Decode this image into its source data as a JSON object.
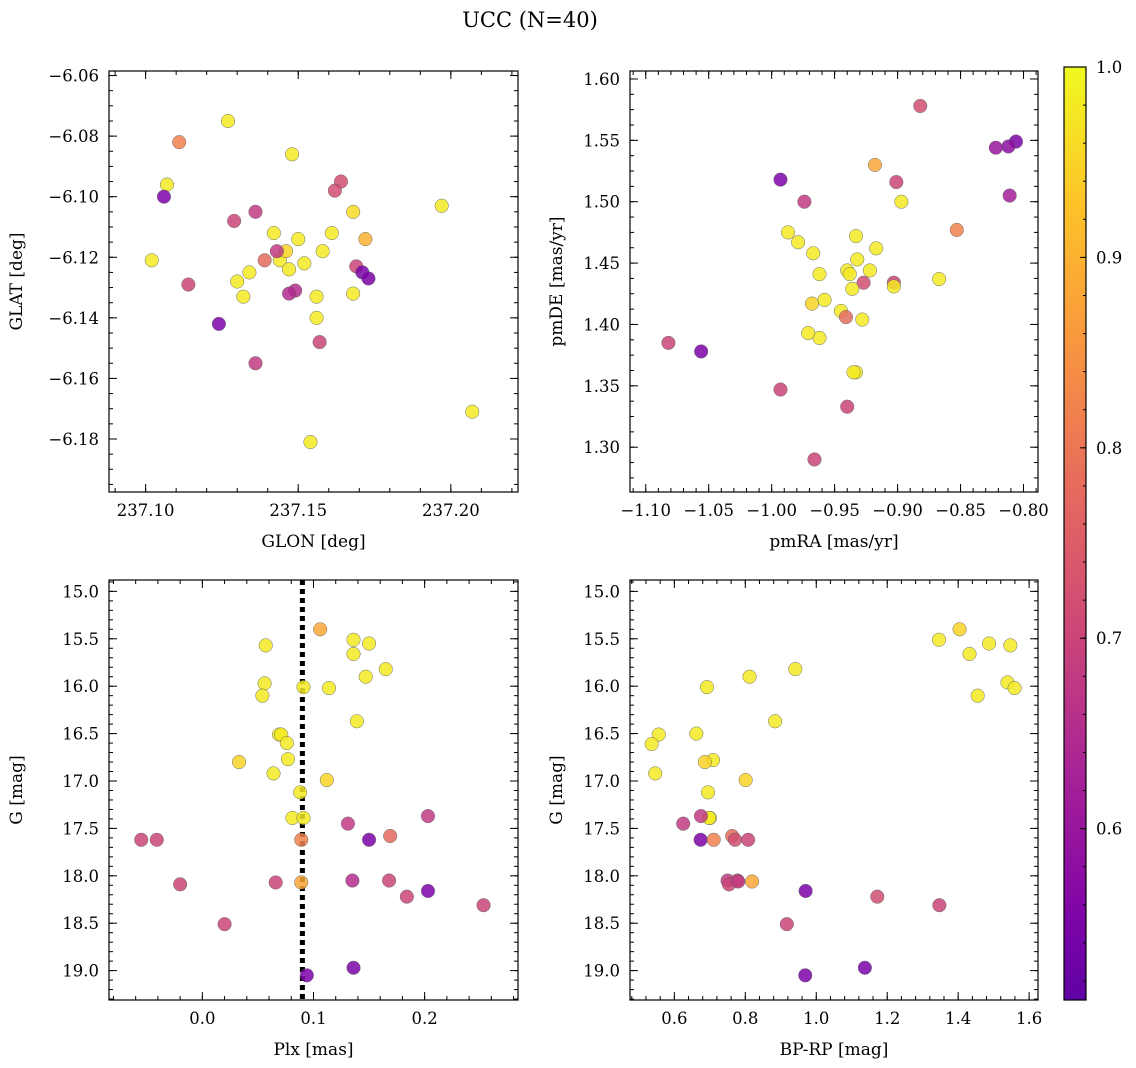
{
  "figure": {
    "title": "UCC (N=40)"
  },
  "colorbar": {
    "cmap": "plasma",
    "vmin": 0.51,
    "vmax": 1.0,
    "ticks": [
      0.6,
      0.7,
      0.8,
      0.9,
      1.0
    ],
    "tick_labels": [
      "0.6",
      "0.7",
      "0.8",
      "0.9",
      "1.0"
    ]
  },
  "chart_data": [
    {
      "type": "scatter",
      "id": "spatial",
      "xlabel": "GLON [deg]",
      "ylabel": "GLAT [deg]",
      "xlim": [
        237.088,
        237.222
      ],
      "ylim": [
        -6.1975,
        -6.0585
      ],
      "invert_y": false,
      "xticks": [
        237.1,
        237.15,
        237.2
      ],
      "xtick_labels": [
        "237.10",
        "237.15",
        "237.20"
      ],
      "yticks": [
        -6.18,
        -6.16,
        -6.14,
        -6.12,
        -6.1,
        -6.08,
        -6.06
      ],
      "ytick_labels": [
        "−6.18",
        "−6.16",
        "−6.14",
        "−6.12",
        "−6.10",
        "−6.08",
        "−6.06"
      ],
      "x": [
        237.127,
        237.111,
        237.107,
        237.106,
        237.148,
        237.164,
        237.162,
        237.197,
        237.136,
        237.129,
        237.168,
        237.142,
        237.15,
        237.161,
        237.102,
        237.144,
        237.146,
        237.158,
        237.172,
        237.139,
        237.152,
        237.169,
        237.171,
        237.173,
        237.134,
        237.13,
        237.114,
        237.149,
        237.147,
        237.168,
        237.132,
        237.156,
        237.124,
        237.156,
        237.157,
        237.136,
        237.154,
        237.207,
        237.143,
        237.147
      ],
      "y": [
        -6.075,
        -6.082,
        -6.096,
        -6.1,
        -6.086,
        -6.095,
        -6.098,
        -6.103,
        -6.105,
        -6.108,
        -6.105,
        -6.112,
        -6.114,
        -6.112,
        -6.121,
        -6.121,
        -6.118,
        -6.118,
        -6.114,
        -6.121,
        -6.122,
        -6.123,
        -6.125,
        -6.127,
        -6.125,
        -6.128,
        -6.129,
        -6.131,
        -6.132,
        -6.132,
        -6.133,
        -6.133,
        -6.142,
        -6.14,
        -6.148,
        -6.155,
        -6.181,
        -6.171,
        -6.118,
        -6.124
      ],
      "c": [
        0.98,
        0.82,
        0.98,
        0.55,
        0.98,
        0.72,
        0.72,
        0.98,
        0.68,
        0.7,
        0.96,
        0.98,
        0.98,
        0.98,
        0.98,
        0.98,
        0.95,
        0.98,
        0.9,
        0.78,
        0.98,
        0.7,
        0.55,
        0.55,
        0.98,
        0.98,
        0.7,
        0.65,
        0.65,
        0.98,
        0.98,
        0.98,
        0.55,
        0.98,
        0.7,
        0.68,
        0.98,
        0.98,
        0.68,
        0.98
      ]
    },
    {
      "type": "scatter",
      "id": "proper-motion",
      "xlabel": "pmRA [mas/yr]",
      "ylabel": "pmDE [mas/yr]",
      "xlim": [
        -1.1125,
        -0.7885
      ],
      "ylim": [
        1.2635,
        1.6065
      ],
      "invert_y": false,
      "xticks": [
        -1.1,
        -1.05,
        -1.0,
        -0.95,
        -0.9,
        -0.85,
        -0.8
      ],
      "xtick_labels": [
        "−1.10",
        "−1.05",
        "−1.00",
        "−0.95",
        "−0.90",
        "−0.85",
        "−0.80"
      ],
      "yticks": [
        1.3,
        1.35,
        1.4,
        1.45,
        1.5,
        1.55,
        1.6
      ],
      "ytick_labels": [
        "1.30",
        "1.35",
        "1.40",
        "1.45",
        "1.50",
        "1.55",
        "1.60"
      ],
      "x": [
        -0.882,
        -0.806,
        -0.812,
        -0.822,
        -0.918,
        -0.993,
        -0.901,
        -0.811,
        -0.974,
        -0.897,
        -0.987,
        -0.853,
        -0.933,
        -0.979,
        -0.917,
        -0.967,
        -0.932,
        -0.962,
        -0.922,
        -0.867,
        -0.94,
        -0.927,
        -0.903,
        -0.938,
        -0.958,
        -0.968,
        -0.945,
        -0.941,
        -0.928,
        -0.962,
        -0.971,
        -1.082,
        -1.056,
        -0.993,
        -0.933,
        -0.935,
        -0.94,
        -0.966,
        -0.903,
        -0.936
      ],
      "y": [
        1.578,
        1.549,
        1.545,
        1.544,
        1.53,
        1.518,
        1.516,
        1.505,
        1.5,
        1.5,
        1.475,
        1.477,
        1.472,
        1.467,
        1.462,
        1.458,
        1.453,
        1.441,
        1.444,
        1.437,
        1.444,
        1.434,
        1.434,
        1.441,
        1.42,
        1.417,
        1.411,
        1.406,
        1.404,
        1.389,
        1.393,
        1.385,
        1.378,
        1.347,
        1.361,
        1.361,
        1.333,
        1.29,
        1.431,
        1.429
      ],
      "c": [
        0.72,
        0.55,
        0.58,
        0.6,
        0.88,
        0.55,
        0.7,
        0.62,
        0.68,
        0.98,
        0.98,
        0.82,
        0.98,
        0.98,
        0.98,
        0.98,
        0.98,
        0.98,
        0.98,
        0.98,
        0.98,
        0.72,
        0.7,
        0.98,
        0.98,
        0.95,
        0.98,
        0.78,
        0.98,
        0.98,
        0.98,
        0.7,
        0.55,
        0.7,
        0.98,
        0.98,
        0.7,
        0.7,
        0.98,
        0.98
      ]
    },
    {
      "type": "scatter",
      "id": "cmd-plx",
      "xlabel": "Plx [mas]",
      "ylabel": "G [mag]",
      "xlim": [
        -0.084,
        0.284
      ],
      "ylim": [
        19.31,
        14.88
      ],
      "invert_y": true,
      "vline": {
        "x": 0.09,
        "style": "dotted"
      },
      "xticks": [
        0.0,
        0.1,
        0.2
      ],
      "xtick_labels": [
        "0.0",
        "0.1",
        "0.2"
      ],
      "yticks": [
        15.0,
        15.5,
        16.0,
        16.5,
        17.0,
        17.5,
        18.0,
        18.5,
        19.0
      ],
      "ytick_labels": [
        "15.0",
        "15.5",
        "16.0",
        "16.5",
        "17.0",
        "17.5",
        "18.0",
        "18.5",
        "19.0"
      ],
      "x": [
        0.106,
        0.136,
        0.15,
        0.057,
        0.136,
        0.165,
        0.056,
        0.091,
        0.114,
        0.147,
        0.054,
        0.139,
        0.069,
        0.071,
        0.076,
        0.033,
        0.077,
        0.064,
        0.112,
        0.088,
        0.081,
        0.091,
        0.131,
        0.203,
        0.169,
        0.15,
        -0.055,
        -0.041,
        0.089,
        -0.02,
        0.066,
        0.089,
        0.135,
        0.168,
        0.203,
        0.184,
        0.253,
        0.02,
        0.094,
        0.136
      ],
      "y": [
        15.4,
        15.51,
        15.55,
        15.57,
        15.66,
        15.82,
        15.97,
        16.01,
        16.02,
        15.9,
        16.1,
        16.37,
        16.51,
        16.51,
        16.6,
        16.8,
        16.77,
        16.92,
        16.99,
        17.12,
        17.39,
        17.39,
        17.45,
        17.37,
        17.58,
        17.62,
        17.62,
        17.62,
        17.62,
        18.09,
        18.07,
        18.07,
        18.05,
        18.05,
        18.16,
        18.22,
        18.31,
        18.51,
        19.05,
        18.97
      ],
      "c": [
        0.88,
        0.98,
        0.98,
        0.98,
        0.98,
        0.98,
        0.98,
        0.98,
        0.98,
        0.98,
        0.98,
        0.98,
        0.98,
        0.98,
        0.98,
        0.95,
        0.98,
        0.98,
        0.95,
        0.98,
        0.98,
        0.98,
        0.68,
        0.68,
        0.78,
        0.55,
        0.7,
        0.7,
        0.82,
        0.7,
        0.7,
        0.88,
        0.65,
        0.7,
        0.55,
        0.7,
        0.7,
        0.7,
        0.55,
        0.55
      ]
    },
    {
      "type": "scatter",
      "id": "cmd-color",
      "xlabel": "BP-RP [mag]",
      "ylabel": "G [mag]",
      "xlim": [
        0.475,
        1.625
      ],
      "ylim": [
        19.31,
        14.88
      ],
      "invert_y": true,
      "xticks": [
        0.6,
        0.8,
        1.0,
        1.2,
        1.4,
        1.6
      ],
      "xtick_labels": [
        "0.6",
        "0.8",
        "1.0",
        "1.2",
        "1.4",
        "1.6"
      ],
      "yticks": [
        15.0,
        15.5,
        16.0,
        16.5,
        17.0,
        17.5,
        18.0,
        18.5,
        19.0
      ],
      "ytick_labels": [
        "15.0",
        "15.5",
        "16.0",
        "16.5",
        "17.0",
        "17.5",
        "18.0",
        "18.5",
        "19.0"
      ],
      "x": [
        1.404,
        1.346,
        1.487,
        1.547,
        1.432,
        0.941,
        1.539,
        1.559,
        0.812,
        0.692,
        1.455,
        0.884,
        0.662,
        0.556,
        0.536,
        0.709,
        0.686,
        0.546,
        0.801,
        0.695,
        0.7,
        0.698,
        0.625,
        0.675,
        0.763,
        0.771,
        0.808,
        0.674,
        0.711,
        0.75,
        0.778,
        0.819,
        0.754,
        0.78,
        0.97,
        1.172,
        1.347,
        0.917,
        0.969,
        1.137
      ],
      "y": [
        15.4,
        15.51,
        15.55,
        15.57,
        15.66,
        15.82,
        15.96,
        16.02,
        15.9,
        16.01,
        16.1,
        16.37,
        16.5,
        16.51,
        16.61,
        16.78,
        16.8,
        16.92,
        16.99,
        17.12,
        17.39,
        17.39,
        17.45,
        17.37,
        17.58,
        17.62,
        17.62,
        17.62,
        17.62,
        18.05,
        18.05,
        18.06,
        18.09,
        18.06,
        18.16,
        18.22,
        18.31,
        18.51,
        19.05,
        18.97
      ],
      "c": [
        0.95,
        0.98,
        0.98,
        0.98,
        0.98,
        0.98,
        0.98,
        0.98,
        0.98,
        0.98,
        0.98,
        0.98,
        0.98,
        0.98,
        0.98,
        0.98,
        0.95,
        0.98,
        0.95,
        0.98,
        0.98,
        0.98,
        0.68,
        0.68,
        0.78,
        0.72,
        0.7,
        0.55,
        0.82,
        0.68,
        0.7,
        0.88,
        0.7,
        0.68,
        0.55,
        0.72,
        0.7,
        0.7,
        0.55,
        0.55
      ]
    }
  ]
}
